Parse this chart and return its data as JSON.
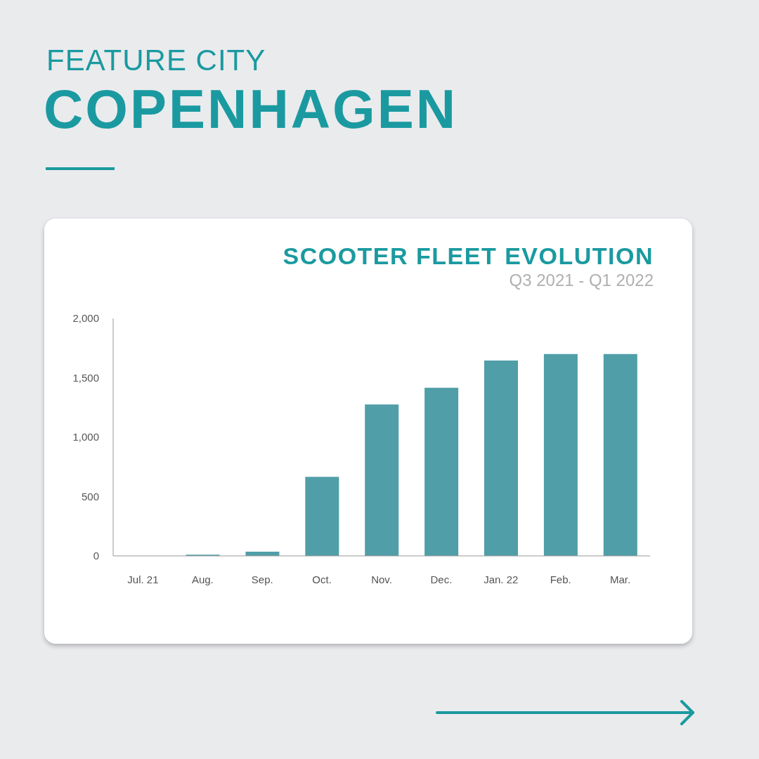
{
  "chart_data": {
    "type": "bar",
    "title": "SCOOTER FLEET EVOLUTION",
    "subtitle": "Q3 2021 - Q1 2022",
    "annotations": [
      "FEATURE CITY",
      "COPENHAGEN"
    ],
    "categories": [
      "Jul. 21",
      "Aug.",
      "Sep.",
      "Oct.",
      "Nov.",
      "Dec.",
      "Jan. 22",
      "Feb.",
      "Mar."
    ],
    "values": [
      0,
      10,
      35,
      665,
      1275,
      1415,
      1645,
      1700,
      1700
    ],
    "color": "#509ea8",
    "ylim": [
      0,
      2000
    ],
    "yticks": [
      {
        "value": 0,
        "label": "0"
      },
      {
        "value": 500,
        "label": "500"
      },
      {
        "value": 1000,
        "label": "1,000"
      },
      {
        "value": 1500,
        "label": "1,500"
      },
      {
        "value": 2000,
        "label": "2,000"
      }
    ],
    "grid": false
  }
}
